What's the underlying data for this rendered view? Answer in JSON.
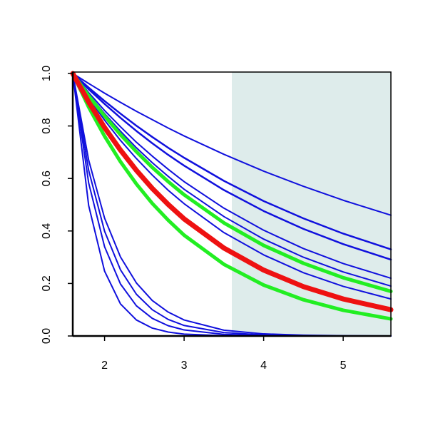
{
  "chart_data": {
    "type": "line",
    "x": [
      1.6,
      1.8,
      2.0,
      2.2,
      2.4,
      2.6,
      2.8,
      3.0,
      3.5,
      4.0,
      4.5,
      5.0,
      5.6
    ],
    "series": [
      {
        "color": "#1010dd",
        "width": 2,
        "values": [
          1,
          0.962,
          0.925,
          0.89,
          0.856,
          0.824,
          0.792,
          0.762,
          0.692,
          0.628,
          0.57,
          0.517,
          0.46
        ]
      },
      {
        "color": "#1010dd",
        "width": 2.5,
        "values": [
          1,
          0.946,
          0.895,
          0.847,
          0.801,
          0.758,
          0.717,
          0.679,
          0.591,
          0.514,
          0.448,
          0.39,
          0.33
        ]
      },
      {
        "color": "#1010dd",
        "width": 2.5,
        "values": [
          1,
          0.94,
          0.884,
          0.831,
          0.781,
          0.734,
          0.69,
          0.649,
          0.556,
          0.476,
          0.408,
          0.35,
          0.291
        ]
      },
      {
        "color": "#1010dd",
        "width": 2,
        "values": [
          1,
          0.927,
          0.859,
          0.797,
          0.738,
          0.685,
          0.635,
          0.588,
          0.487,
          0.403,
          0.333,
          0.276,
          0.22
        ]
      },
      {
        "color": "#1010dd",
        "width": 2,
        "values": [
          1,
          0.92,
          0.847,
          0.78,
          0.717,
          0.66,
          0.608,
          0.559,
          0.455,
          0.369,
          0.3,
          0.244,
          0.19
        ]
      },
      {
        "color": "#1010dd",
        "width": 2,
        "values": [
          1,
          0.907,
          0.822,
          0.745,
          0.676,
          0.613,
          0.555,
          0.504,
          0.394,
          0.309,
          0.241,
          0.189,
          0.141
        ]
      },
      {
        "color": "#1010dd",
        "width": 2,
        "values": [
          1,
          0.497,
          0.247,
          0.122,
          0.061,
          0.03,
          0.015,
          0.007,
          0.001,
          0,
          0,
          0,
          0
        ]
      },
      {
        "color": "#1010dd",
        "width": 2,
        "values": [
          1,
          0.583,
          0.34,
          0.198,
          0.115,
          0.067,
          0.039,
          0.023,
          0.006,
          0.002,
          0,
          0,
          0
        ]
      },
      {
        "color": "#1010dd",
        "width": 2,
        "values": [
          1,
          0.631,
          0.399,
          0.252,
          0.159,
          0.1,
          0.063,
          0.04,
          0.013,
          0.004,
          0.001,
          0,
          0
        ]
      },
      {
        "color": "#1010dd",
        "width": 2,
        "values": [
          1,
          0.67,
          0.449,
          0.301,
          0.202,
          0.135,
          0.091,
          0.061,
          0.022,
          0.008,
          0.003,
          0.001,
          0
        ]
      },
      {
        "color": "#22ee22",
        "width": 5,
        "values": [
          1,
          0.915,
          0.838,
          0.767,
          0.702,
          0.642,
          0.588,
          0.538,
          0.431,
          0.345,
          0.277,
          0.222,
          0.17
        ]
      },
      {
        "color": "#22ee22",
        "width": 5,
        "values": [
          1,
          0.872,
          0.761,
          0.664,
          0.579,
          0.505,
          0.441,
          0.384,
          0.273,
          0.194,
          0.138,
          0.098,
          0.065
        ]
      },
      {
        "color": "#ee1111",
        "width": 7,
        "values": [
          1,
          0.891,
          0.794,
          0.708,
          0.631,
          0.562,
          0.501,
          0.446,
          0.335,
          0.251,
          0.188,
          0.141,
          0.1
        ]
      }
    ],
    "shaded_region": [
      3.6,
      5.6
    ],
    "shade_color": "#deeceb",
    "xlim": [
      1.6,
      5.6
    ],
    "ylim": [
      0,
      1
    ],
    "xticks": [
      2,
      3,
      4,
      5
    ],
    "yticks": [
      {
        "value": 0,
        "label": "0.0"
      },
      0.2,
      0.4,
      0.6,
      0.8,
      {
        "value": 1,
        "label": "1.0"
      }
    ]
  }
}
